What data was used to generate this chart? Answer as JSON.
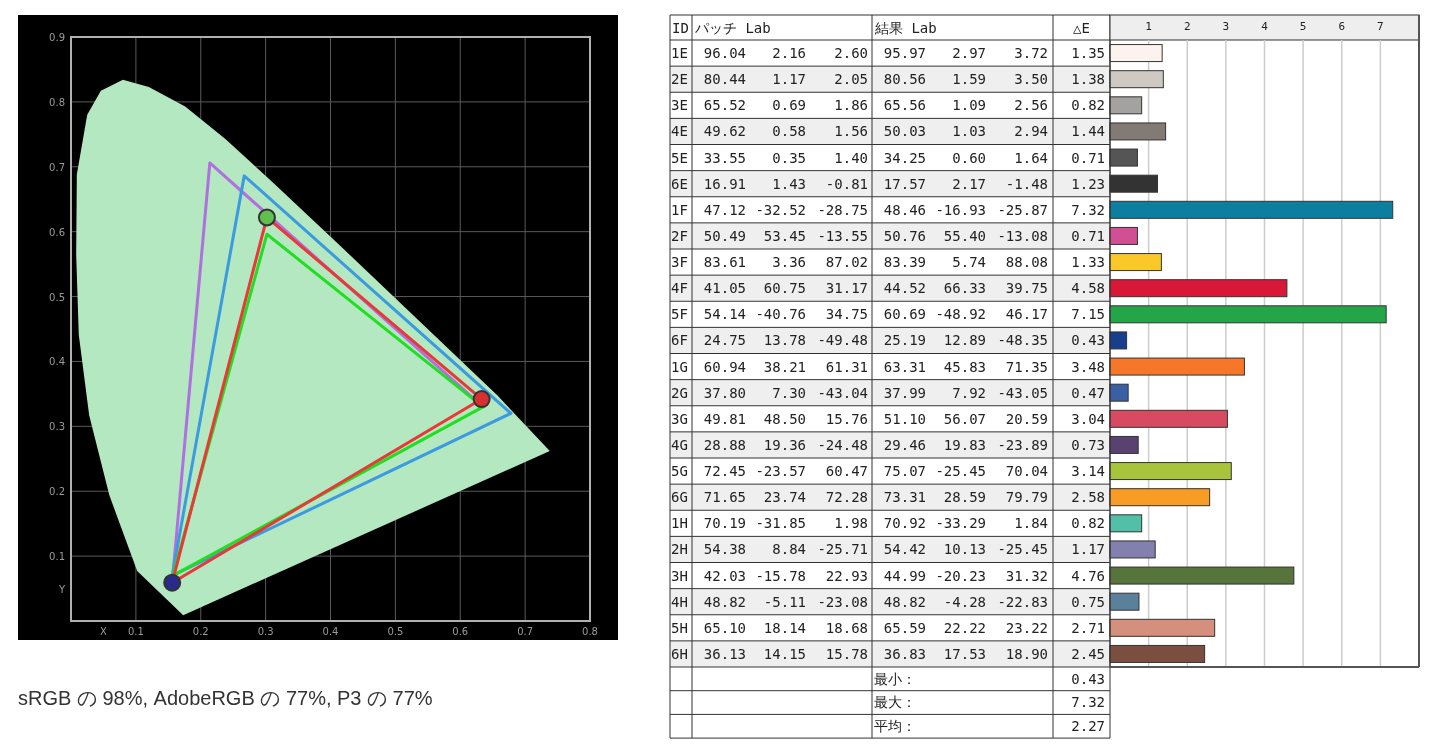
{
  "chart_data": [
    {
      "type": "line",
      "xlabel": "X",
      "ylabel": "Y",
      "xlim": [
        0,
        0.8
      ],
      "ylim": [
        0,
        0.9
      ],
      "xticks": [
        0.1,
        0.2,
        0.3,
        0.4,
        0.5,
        0.6,
        0.7,
        0.8
      ],
      "yticks": [
        0.1,
        0.2,
        0.3,
        0.4,
        0.5,
        0.6,
        0.7,
        0.8,
        0.9
      ],
      "grid": true,
      "annotations": [
        "sRGB の 98%, AdobeRGB の 77%, P3 の 77%"
      ],
      "series": [
        {
          "type": "area",
          "color": "#b4e8c0",
          "x": [
            0.173,
            0.102,
            0.059,
            0.028,
            0.012,
            0.008,
            0.009,
            0.025,
            0.046,
            0.08,
            0.12,
            0.176,
            0.238,
            0.312,
            0.41,
            0.534,
            0.657,
            0.738,
            0.173
          ],
          "values": [
            0.009,
            0.077,
            0.194,
            0.317,
            0.441,
            0.564,
            0.688,
            0.78,
            0.817,
            0.834,
            0.823,
            0.793,
            0.743,
            0.675,
            0.583,
            0.465,
            0.348,
            0.262,
            0.009
          ]
        },
        {
          "color": "#b070e0",
          "x": [
            0.157,
            0.214,
            0.635
          ],
          "values": [
            0.07,
            0.706,
            0.33
          ]
        },
        {
          "color": "#3c9ae0",
          "x": [
            0.156,
            0.267,
            0.678
          ],
          "values": [
            0.07,
            0.686,
            0.32
          ]
        },
        {
          "color": "#3c9ae0",
          "x": [
            0.156,
            0.678
          ],
          "values": [
            0.07,
            0.32
          ]
        },
        {
          "color": "#22dd22",
          "x": [
            0.157,
            0.302,
            0.635
          ],
          "values": [
            0.07,
            0.596,
            0.33
          ]
        },
        {
          "color": "#22dd22",
          "x": [
            0.157,
            0.635
          ],
          "values": [
            0.07,
            0.33
          ]
        },
        {
          "color": "#e83838",
          "x": [
            0.156,
            0.302,
            0.633
          ],
          "values": [
            0.059,
            0.622,
            0.342
          ]
        },
        {
          "color": "#e83838",
          "x": [
            0.156,
            0.633
          ],
          "values": [
            0.059,
            0.342
          ]
        },
        {
          "type": "scatter",
          "colors": [
            "#5fbf4f",
            "#d83030",
            "#2a2a8a"
          ],
          "x": [
            0.302,
            0.633,
            0.156
          ],
          "values": [
            0.622,
            0.342,
            0.059
          ]
        }
      ]
    },
    {
      "type": "heatmap",
      "ylabel": "ID",
      "categories": [
        "パッチ Lab",
        null,
        null,
        "結果 Lab",
        null,
        null,
        "△E"
      ],
      "y_categories": [
        "1E",
        "2E",
        "3E",
        "4E",
        "5E",
        "6E",
        "1F",
        "2F",
        "3F",
        "4F",
        "5F",
        "6F",
        "1G",
        "2G",
        "3G",
        "4G",
        "5G",
        "6G",
        "1H",
        "2H",
        "3H",
        "4H",
        "5H",
        "6H"
      ],
      "cells": [
        [
          96.04,
          2.16,
          2.6,
          95.97,
          2.97,
          3.72,
          1.35
        ],
        [
          80.44,
          1.17,
          2.05,
          80.56,
          1.59,
          3.5,
          1.38
        ],
        [
          65.52,
          0.69,
          1.86,
          65.56,
          1.09,
          2.56,
          0.82
        ],
        [
          49.62,
          0.58,
          1.56,
          50.03,
          1.03,
          2.94,
          1.44
        ],
        [
          33.55,
          0.35,
          1.4,
          34.25,
          0.6,
          1.64,
          0.71
        ],
        [
          16.91,
          1.43,
          -0.81,
          17.57,
          2.17,
          -1.48,
          1.23
        ],
        [
          47.12,
          -32.52,
          -28.75,
          48.46,
          -16.93,
          -25.87,
          7.32
        ],
        [
          50.49,
          53.45,
          -13.55,
          50.76,
          55.4,
          -13.08,
          0.71
        ],
        [
          83.61,
          3.36,
          87.02,
          83.39,
          5.74,
          88.08,
          1.33
        ],
        [
          41.05,
          60.75,
          31.17,
          44.52,
          66.33,
          39.75,
          4.58
        ],
        [
          54.14,
          -40.76,
          34.75,
          60.69,
          -48.92,
          46.17,
          7.15
        ],
        [
          24.75,
          13.78,
          -49.48,
          25.19,
          12.89,
          -48.35,
          0.43
        ],
        [
          60.94,
          38.21,
          61.31,
          63.31,
          45.83,
          71.35,
          3.48
        ],
        [
          37.8,
          7.3,
          -43.04,
          37.99,
          7.92,
          -43.05,
          0.47
        ],
        [
          49.81,
          48.5,
          15.76,
          51.1,
          56.07,
          20.59,
          3.04
        ],
        [
          28.88,
          19.36,
          -24.48,
          29.46,
          19.83,
          -23.89,
          0.73
        ],
        [
          72.45,
          -23.57,
          60.47,
          75.07,
          -25.45,
          70.04,
          3.14
        ],
        [
          71.65,
          23.74,
          72.28,
          73.31,
          28.59,
          79.79,
          2.58
        ],
        [
          70.19,
          -31.85,
          1.98,
          70.92,
          -33.29,
          1.84,
          0.82
        ],
        [
          54.38,
          8.84,
          -25.71,
          54.42,
          10.13,
          -25.45,
          1.17
        ],
        [
          42.03,
          -15.78,
          22.93,
          44.99,
          -20.23,
          31.32,
          4.76
        ],
        [
          48.82,
          -5.11,
          -23.08,
          48.82,
          -4.28,
          -22.83,
          0.75
        ],
        [
          65.1,
          18.14,
          18.68,
          65.59,
          22.22,
          23.22,
          2.71
        ],
        [
          36.13,
          14.15,
          15.78,
          36.83,
          17.53,
          18.9,
          2.45
        ]
      ],
      "cell_labels": [
        [
          "96.04",
          "2.16",
          "2.60",
          "95.97",
          "2.97",
          "3.72",
          "1.35"
        ],
        [
          "80.44",
          "1.17",
          "2.05",
          "80.56",
          "1.59",
          "3.50",
          "1.38"
        ],
        [
          "65.52",
          "0.69",
          "1.86",
          "65.56",
          "1.09",
          "2.56",
          "0.82"
        ],
        [
          "49.62",
          "0.58",
          "1.56",
          "50.03",
          "1.03",
          "2.94",
          "1.44"
        ],
        [
          "33.55",
          "0.35",
          "1.40",
          "34.25",
          "0.60",
          "1.64",
          "0.71"
        ],
        [
          "16.91",
          "1.43",
          "-0.81",
          "17.57",
          "2.17",
          "-1.48",
          "1.23"
        ],
        [
          "47.12",
          "-32.52",
          "-28.75",
          "48.46",
          "-16.93",
          "-25.87",
          "7.32"
        ],
        [
          "50.49",
          "53.45",
          "-13.55",
          "50.76",
          "55.40",
          "-13.08",
          "0.71"
        ],
        [
          "83.61",
          "3.36",
          "87.02",
          "83.39",
          "5.74",
          "88.08",
          "1.33"
        ],
        [
          "41.05",
          "60.75",
          "31.17",
          "44.52",
          "66.33",
          "39.75",
          "4.58"
        ],
        [
          "54.14",
          "-40.76",
          "34.75",
          "60.69",
          "-48.92",
          "46.17",
          "7.15"
        ],
        [
          "24.75",
          "13.78",
          "-49.48",
          "25.19",
          "12.89",
          "-48.35",
          "0.43"
        ],
        [
          "60.94",
          "38.21",
          "61.31",
          "63.31",
          "45.83",
          "71.35",
          "3.48"
        ],
        [
          "37.80",
          "7.30",
          "-43.04",
          "37.99",
          "7.92",
          "-43.05",
          "0.47"
        ],
        [
          "49.81",
          "48.50",
          "15.76",
          "51.10",
          "56.07",
          "20.59",
          "3.04"
        ],
        [
          "28.88",
          "19.36",
          "-24.48",
          "29.46",
          "19.83",
          "-23.89",
          "0.73"
        ],
        [
          "72.45",
          "-23.57",
          "60.47",
          "75.07",
          "-25.45",
          "70.04",
          "3.14"
        ],
        [
          "71.65",
          "23.74",
          "72.28",
          "73.31",
          "28.59",
          "79.79",
          "2.58"
        ],
        [
          "70.19",
          "-31.85",
          "1.98",
          "70.92",
          "-33.29",
          "1.84",
          "0.82"
        ],
        [
          "54.38",
          "8.84",
          "-25.71",
          "54.42",
          "10.13",
          "-25.45",
          "1.17"
        ],
        [
          "42.03",
          "-15.78",
          "22.93",
          "44.99",
          "-20.23",
          "31.32",
          "4.76"
        ],
        [
          "48.82",
          "-5.11",
          "-23.08",
          "48.82",
          "-4.28",
          "-22.83",
          "0.75"
        ],
        [
          "65.10",
          "18.14",
          "18.68",
          "65.59",
          "22.22",
          "23.22",
          "2.71"
        ],
        [
          "36.13",
          "14.15",
          "15.78",
          "36.83",
          "17.53",
          "18.90",
          "2.45"
        ]
      ],
      "annotations": [
        "最小：",
        "0.43",
        "最大：",
        "7.32",
        "平均：",
        "2.27"
      ]
    },
    {
      "type": "bar",
      "orientation": "horizontal",
      "categories": [
        null,
        null,
        null,
        null,
        null,
        null,
        null,
        null,
        null,
        null,
        null,
        null,
        null,
        null,
        null,
        null,
        null,
        null,
        null,
        null,
        null,
        null,
        null,
        null
      ],
      "values": [
        1.35,
        1.38,
        0.82,
        1.44,
        0.71,
        1.23,
        7.32,
        0.71,
        1.33,
        4.58,
        7.15,
        0.43,
        3.48,
        0.47,
        3.04,
        0.73,
        3.14,
        2.58,
        0.82,
        1.17,
        4.76,
        0.75,
        2.71,
        2.45
      ],
      "colors": [
        "#fdf3ee",
        "#cfc9c3",
        "#a3a2a0",
        "#827a75",
        "#555555",
        "#333333",
        "#0c7fa1",
        "#d24f96",
        "#fbc82a",
        "#d81836",
        "#23a548",
        "#173f8c",
        "#f7772a",
        "#3a5fa4",
        "#d84a5f",
        "#5a4270",
        "#a8c43c",
        "#f89c25",
        "#52bfa7",
        "#8380ad",
        "#56743c",
        "#5a809a",
        "#d48f7d",
        "#7b4f3f"
      ],
      "xlim": [
        0,
        8
      ],
      "xticks": [
        1,
        2,
        3,
        4,
        5,
        6,
        7
      ],
      "grid": "x",
      "tick_labels": "x"
    }
  ]
}
